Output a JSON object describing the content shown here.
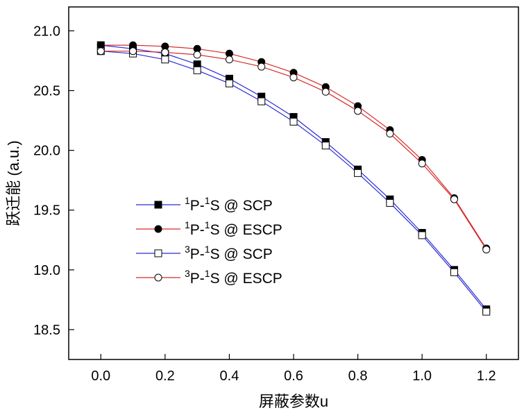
{
  "chart_data": {
    "type": "line",
    "xlabel": "屏蔽参数u",
    "ylabel": "跃迁能 (a.u.)",
    "xlim": [
      -0.1,
      1.3
    ],
    "ylim": [
      18.25,
      21.2
    ],
    "xticks": [
      "0.0",
      "0.2",
      "0.4",
      "0.6",
      "0.8",
      "1.0",
      "1.2"
    ],
    "yticks": [
      "18.5",
      "19.0",
      "19.5",
      "20.0",
      "20.5",
      "21.0"
    ],
    "grid": false,
    "legend_position": "lower-left",
    "x": [
      0.0,
      0.1,
      0.2,
      0.3,
      0.4,
      0.5,
      0.6,
      0.7,
      0.8,
      0.9,
      1.0,
      1.1,
      1.2
    ],
    "series": [
      {
        "name": "1P-1S @ SCP",
        "label_parts": {
          "sup1": "1",
          "mid": "P-",
          "sup2": "1",
          "tail": "S @ SCP"
        },
        "color": "#2b2bd6",
        "marker": "filled-square",
        "values": [
          20.88,
          20.85,
          20.81,
          20.72,
          20.6,
          20.45,
          20.28,
          20.07,
          19.84,
          19.59,
          19.31,
          19.0,
          18.67
        ]
      },
      {
        "name": "1P-1S @ ESCP",
        "label_parts": {
          "sup1": "1",
          "mid": "P-",
          "sup2": "1",
          "tail": "S @ ESCP"
        },
        "color": "#d62b2b",
        "marker": "filled-circle",
        "values": [
          20.88,
          20.88,
          20.87,
          20.85,
          20.81,
          20.74,
          20.65,
          20.53,
          20.37,
          20.17,
          19.92,
          19.6,
          19.18
        ]
      },
      {
        "name": "3P-1S @ SCP",
        "label_parts": {
          "sup1": "3",
          "mid": "P-",
          "sup2": "1",
          "tail": "S @ SCP"
        },
        "color": "#2b2bd6",
        "marker": "open-square",
        "values": [
          20.83,
          20.81,
          20.76,
          20.67,
          20.56,
          20.41,
          20.24,
          20.04,
          19.81,
          19.56,
          19.29,
          18.98,
          18.65
        ]
      },
      {
        "name": "3P-1S @ ESCP",
        "label_parts": {
          "sup1": "3",
          "mid": "P-",
          "sup2": "1",
          "tail": "S @ ESCP"
        },
        "color": "#d62b2b",
        "marker": "open-circle",
        "values": [
          20.83,
          20.83,
          20.82,
          20.8,
          20.76,
          20.7,
          20.61,
          20.49,
          20.33,
          20.14,
          19.89,
          19.59,
          19.17
        ]
      }
    ]
  }
}
